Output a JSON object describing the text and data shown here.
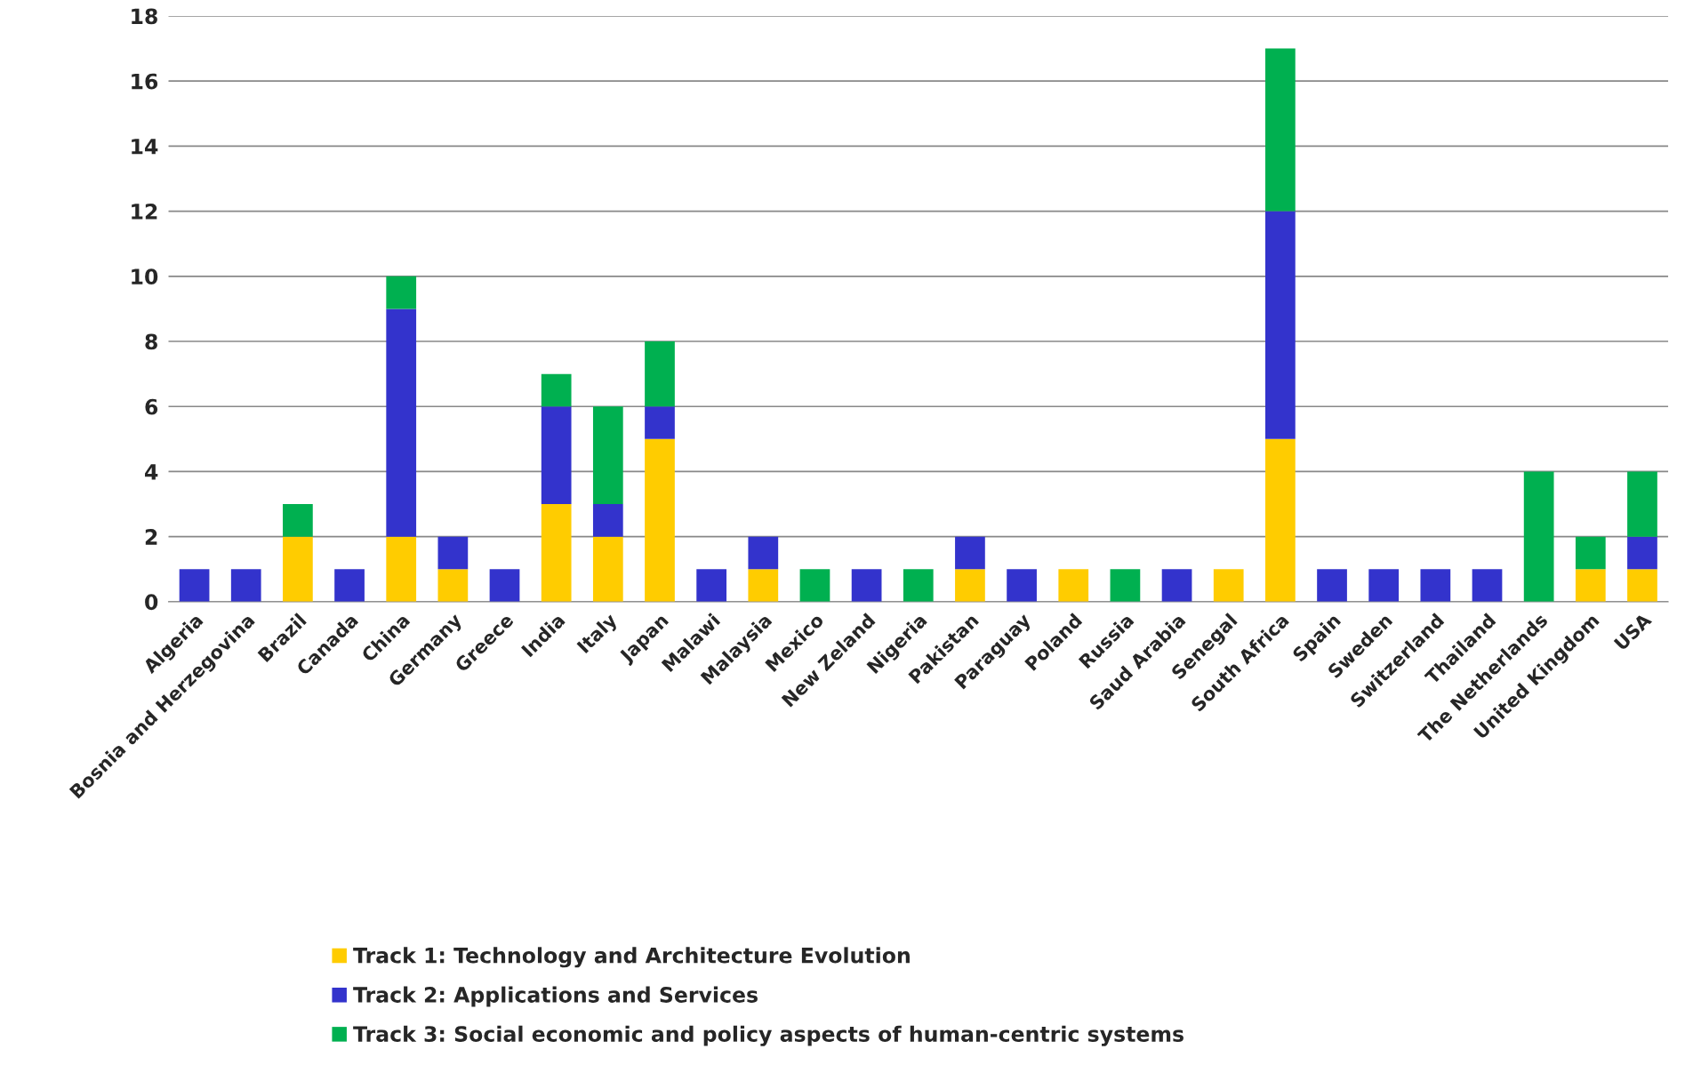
{
  "chart_data": {
    "type": "bar",
    "stacked": true,
    "categories": [
      "Algeria",
      "Bosnia and Herzegovina",
      "Brazil",
      "Canada",
      "China",
      "Germany",
      "Greece",
      "India",
      "Italy",
      "Japan",
      "Malawi",
      "Malaysia",
      "Mexico",
      "New Zeland",
      "Nigeria",
      "Pakistan",
      "Paraguay",
      "Poland",
      "Russia",
      "Saud Arabia",
      "Senegal",
      "South Africa",
      "Spain",
      "Sweden",
      "Switzerland",
      "Thailand",
      "The Netherlands",
      "United Kingdom",
      "USA"
    ],
    "series": [
      {
        "name": "Track 1: Technology and Architecture Evolution",
        "color": "#ffcc00",
        "values": [
          0,
          0,
          2,
          0,
          2,
          1,
          0,
          3,
          2,
          5,
          0,
          1,
          0,
          0,
          0,
          1,
          0,
          1,
          0,
          0,
          1,
          5,
          0,
          0,
          0,
          0,
          0,
          1,
          1
        ]
      },
      {
        "name": "Track 2: Applications and Services",
        "color": "#3333cc",
        "values": [
          1,
          1,
          0,
          1,
          7,
          1,
          1,
          3,
          1,
          1,
          1,
          1,
          0,
          1,
          0,
          1,
          1,
          0,
          0,
          1,
          0,
          7,
          1,
          1,
          1,
          1,
          0,
          0,
          1
        ]
      },
      {
        "name": "Track 3: Social economic and policy aspects of human-centric systems",
        "color": "#00b050",
        "values": [
          0,
          0,
          1,
          0,
          1,
          0,
          0,
          1,
          3,
          2,
          0,
          0,
          1,
          0,
          1,
          0,
          0,
          0,
          1,
          0,
          0,
          5,
          0,
          0,
          0,
          0,
          4,
          1,
          2
        ]
      }
    ],
    "ylim": [
      0,
      18
    ],
    "yticks": [
      0,
      2,
      4,
      6,
      8,
      10,
      12,
      14,
      16,
      18
    ],
    "grid": "y",
    "legend": "bottom"
  }
}
